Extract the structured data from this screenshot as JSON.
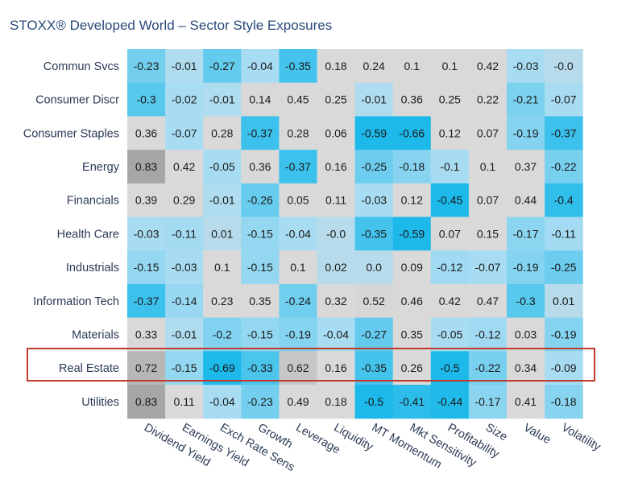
{
  "chart_data": {
    "type": "heatmap",
    "title": "STOXX® Developed World – Sector Style Exposures",
    "rows": [
      "Commun Svcs",
      "Consumer Discr",
      "Consumer Staples",
      "Energy",
      "Financials",
      "Health Care",
      "Industrials",
      "Information Tech",
      "Materials",
      "Real Estate",
      "Utilities"
    ],
    "columns": [
      "Dividend Yield",
      "Earnings Yield",
      "Exch Rate Sens",
      "Growth",
      "Leverage",
      "Liquidity",
      "MT Momentum",
      "Mkt Sensitivity",
      "Profitability",
      "Size",
      "Value",
      "Volatility"
    ],
    "values": [
      [
        -0.23,
        -0.01,
        -0.27,
        -0.04,
        -0.35,
        0.18,
        0.24,
        0.1,
        0.1,
        0.42,
        -0.03,
        -0.0
      ],
      [
        -0.3,
        -0.02,
        -0.01,
        0.14,
        0.45,
        0.25,
        -0.01,
        0.36,
        0.25,
        0.22,
        -0.21,
        -0.07
      ],
      [
        0.36,
        -0.07,
        0.28,
        -0.37,
        0.28,
        0.06,
        -0.59,
        -0.66,
        0.12,
        0.07,
        -0.19,
        -0.37
      ],
      [
        0.83,
        0.42,
        -0.05,
        0.36,
        -0.37,
        0.16,
        -0.25,
        -0.18,
        -0.1,
        0.1,
        0.37,
        -0.22
      ],
      [
        0.39,
        0.29,
        -0.01,
        -0.26,
        0.05,
        0.11,
        -0.03,
        0.12,
        -0.45,
        0.07,
        0.44,
        -0.4
      ],
      [
        -0.03,
        -0.11,
        0.01,
        -0.15,
        -0.04,
        -0.0,
        -0.35,
        -0.59,
        0.07,
        0.15,
        -0.17,
        -0.11
      ],
      [
        -0.15,
        -0.03,
        0.1,
        -0.15,
        0.1,
        0.02,
        0.0,
        0.09,
        -0.12,
        -0.07,
        -0.19,
        -0.25
      ],
      [
        -0.37,
        -0.14,
        0.23,
        0.35,
        -0.24,
        0.32,
        0.52,
        0.46,
        0.42,
        0.47,
        -0.3,
        0.01
      ],
      [
        0.33,
        -0.01,
        -0.2,
        -0.15,
        -0.19,
        -0.04,
        -0.27,
        0.35,
        -0.05,
        -0.12,
        0.03,
        -0.19
      ],
      [
        0.72,
        -0.15,
        -0.69,
        -0.33,
        0.62,
        0.16,
        -0.35,
        0.26,
        -0.5,
        -0.22,
        0.34,
        -0.09
      ],
      [
        0.83,
        0.11,
        -0.04,
        -0.23,
        0.49,
        0.18,
        -0.5,
        -0.41,
        -0.44,
        -0.17,
        0.41,
        -0.18
      ]
    ],
    "value_labels": [
      [
        "-0.23",
        "-0.01",
        "-0.27",
        "-0.04",
        "-0.35",
        "0.18",
        "0.24",
        "0.1",
        "0.1",
        "0.42",
        "-0.03",
        "-0.0"
      ],
      [
        "-0.3",
        "-0.02",
        "-0.01",
        "0.14",
        "0.45",
        "0.25",
        "-0.01",
        "0.36",
        "0.25",
        "0.22",
        "-0.21",
        "-0.07"
      ],
      [
        "0.36",
        "-0.07",
        "0.28",
        "-0.37",
        "0.28",
        "0.06",
        "-0.59",
        "-0.66",
        "0.12",
        "0.07",
        "-0.19",
        "-0.37"
      ],
      [
        "0.83",
        "0.42",
        "-0.05",
        "0.36",
        "-0.37",
        "0.16",
        "-0.25",
        "-0.18",
        "-0.1",
        "0.1",
        "0.37",
        "-0.22"
      ],
      [
        "0.39",
        "0.29",
        "-0.01",
        "-0.26",
        "0.05",
        "0.11",
        "-0.03",
        "0.12",
        "-0.45",
        "0.07",
        "0.44",
        "-0.4"
      ],
      [
        "-0.03",
        "-0.11",
        "0.01",
        "-0.15",
        "-0.04",
        "-0.0",
        "-0.35",
        "-0.59",
        "0.07",
        "0.15",
        "-0.17",
        "-0.11"
      ],
      [
        "-0.15",
        "-0.03",
        "0.1",
        "-0.15",
        "0.1",
        "0.02",
        "0.0",
        "0.09",
        "-0.12",
        "-0.07",
        "-0.19",
        "-0.25"
      ],
      [
        "-0.37",
        "-0.14",
        "0.23",
        "0.35",
        "-0.24",
        "0.32",
        "0.52",
        "0.46",
        "0.42",
        "0.47",
        "-0.3",
        "0.01"
      ],
      [
        "0.33",
        "-0.01",
        "-0.2",
        "-0.15",
        "-0.19",
        "-0.04",
        "-0.27",
        "0.35",
        "-0.05",
        "-0.12",
        "0.03",
        "-0.19"
      ],
      [
        "0.72",
        "-0.15",
        "-0.69",
        "-0.33",
        "0.62",
        "0.16",
        "-0.35",
        "0.26",
        "-0.5",
        "-0.22",
        "0.34",
        "-0.09"
      ],
      [
        "0.83",
        "0.11",
        "-0.04",
        "-0.23",
        "0.49",
        "0.18",
        "-0.5",
        "-0.41",
        "-0.44",
        "-0.17",
        "0.41",
        "-0.18"
      ]
    ],
    "highlighted_row": "Real Estate",
    "legend": "none",
    "grid": false,
    "colors": {
      "negative_strong": "#1cb9ea",
      "negative_weak": "#a8dcf2",
      "neutral": "#d9d9d9",
      "positive_strong": "#a6a6a6",
      "highlight_border": "#c0392b",
      "title": "#2a4a7a"
    }
  }
}
